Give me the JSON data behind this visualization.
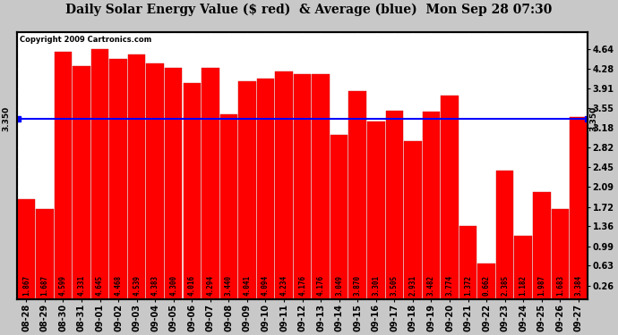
{
  "title": "Daily Solar Energy Value ($ red)  & Average (blue)  Mon Sep 28 07:30",
  "copyright": "Copyright 2009 Cartronics.com",
  "average": 3.35,
  "categories": [
    "08-28",
    "08-29",
    "08-30",
    "08-31",
    "09-01",
    "09-02",
    "09-03",
    "09-04",
    "09-05",
    "09-06",
    "09-07",
    "09-08",
    "09-09",
    "09-10",
    "09-11",
    "09-12",
    "09-13",
    "09-14",
    "09-15",
    "09-16",
    "09-17",
    "09-18",
    "09-19",
    "09-20",
    "09-21",
    "09-22",
    "09-23",
    "09-24",
    "09-25",
    "09-26",
    "09-27"
  ],
  "values": [
    1.867,
    1.687,
    4.599,
    4.331,
    4.645,
    4.468,
    4.539,
    4.383,
    4.3,
    4.016,
    4.294,
    3.44,
    4.041,
    4.094,
    4.234,
    4.176,
    4.176,
    3.049,
    3.87,
    3.301,
    3.505,
    2.931,
    3.482,
    3.774,
    1.372,
    0.662,
    2.385,
    1.182,
    1.987,
    1.683,
    3.384
  ],
  "bar_color": "#ff0000",
  "avg_line_color": "#0000ff",
  "background_color": "#c8c8c8",
  "plot_bg_color": "#ffffff",
  "grid_color": "#ffffff",
  "text_color": "#000000",
  "ylim_min": 0.0,
  "ylim_max": 4.96,
  "yticks": [
    0.26,
    0.63,
    0.99,
    1.36,
    1.72,
    2.09,
    2.45,
    2.82,
    3.18,
    3.55,
    3.91,
    4.28,
    4.64
  ],
  "avg_label": "3.350",
  "title_fontsize": 10,
  "tick_fontsize": 7,
  "bar_label_fontsize": 5.5,
  "copyright_fontsize": 6
}
